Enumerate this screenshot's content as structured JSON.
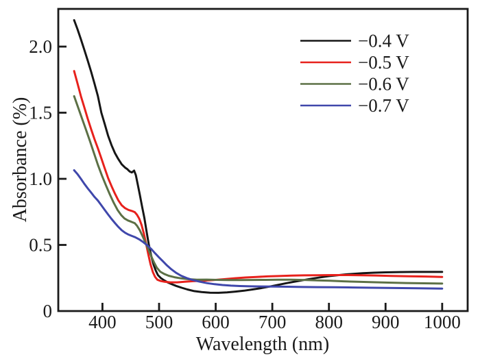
{
  "chart_data": {
    "type": "line",
    "title": "",
    "xlabel": "Wavelength (nm)",
    "ylabel": "Absorbance (%)",
    "xlim": [
      322,
      1045
    ],
    "ylim": [
      0,
      2.285
    ],
    "grid": false,
    "legend_position": "upper right",
    "frame_color": "#1a1a1a",
    "x_ticks": [
      {
        "value": 400,
        "label": "400"
      },
      {
        "value": 500,
        "label": "500"
      },
      {
        "value": 600,
        "label": "600"
      },
      {
        "value": 700,
        "label": "700"
      },
      {
        "value": 800,
        "label": "800"
      },
      {
        "value": 900,
        "label": "900"
      },
      {
        "value": 1000,
        "label": "1000"
      }
    ],
    "y_ticks": [
      {
        "value": 0,
        "label": "0"
      },
      {
        "value": 0.5,
        "label": "0.5"
      },
      {
        "value": 1.0,
        "label": "1.0"
      },
      {
        "value": 1.5,
        "label": "1.5"
      },
      {
        "value": 2.0,
        "label": "2.0"
      }
    ],
    "series": [
      {
        "name": "−0.4 V",
        "color": "#161616",
        "points": [
          [
            350,
            2.2
          ],
          [
            356,
            2.13
          ],
          [
            362,
            2.055
          ],
          [
            368,
            1.975
          ],
          [
            374,
            1.895
          ],
          [
            380,
            1.81
          ],
          [
            386,
            1.72
          ],
          [
            392,
            1.625
          ],
          [
            398,
            1.5
          ],
          [
            404,
            1.415
          ],
          [
            410,
            1.325
          ],
          [
            416,
            1.255
          ],
          [
            422,
            1.195
          ],
          [
            428,
            1.15
          ],
          [
            434,
            1.11
          ],
          [
            440,
            1.085
          ],
          [
            444,
            1.073
          ],
          [
            448,
            1.056
          ],
          [
            452,
            1.048
          ],
          [
            456,
            1.062
          ],
          [
            459,
            1.028
          ],
          [
            462,
            0.965
          ],
          [
            466,
            0.88
          ],
          [
            470,
            0.79
          ],
          [
            474,
            0.705
          ],
          [
            478,
            0.6
          ],
          [
            482,
            0.5
          ],
          [
            486,
            0.42
          ],
          [
            490,
            0.355
          ],
          [
            494,
            0.308
          ],
          [
            498,
            0.272
          ],
          [
            503,
            0.25
          ],
          [
            509,
            0.232
          ],
          [
            515,
            0.217
          ],
          [
            522,
            0.204
          ],
          [
            530,
            0.19
          ],
          [
            540,
            0.176
          ],
          [
            550,
            0.163
          ],
          [
            562,
            0.151
          ],
          [
            575,
            0.144
          ],
          [
            590,
            0.139
          ],
          [
            605,
            0.138
          ],
          [
            620,
            0.141
          ],
          [
            635,
            0.147
          ],
          [
            650,
            0.154
          ],
          [
            665,
            0.163
          ],
          [
            680,
            0.173
          ],
          [
            695,
            0.185
          ],
          [
            710,
            0.198
          ],
          [
            725,
            0.211
          ],
          [
            740,
            0.223
          ],
          [
            755,
            0.234
          ],
          [
            770,
            0.245
          ],
          [
            785,
            0.255
          ],
          [
            800,
            0.264
          ],
          [
            815,
            0.271
          ],
          [
            830,
            0.277
          ],
          [
            845,
            0.282
          ],
          [
            860,
            0.286
          ],
          [
            880,
            0.29
          ],
          [
            900,
            0.293
          ],
          [
            925,
            0.295
          ],
          [
            950,
            0.296
          ],
          [
            975,
            0.296
          ],
          [
            1000,
            0.296
          ]
        ]
      },
      {
        "name": "−0.5 V",
        "color": "#e7211c",
        "points": [
          [
            350,
            1.815
          ],
          [
            356,
            1.72
          ],
          [
            362,
            1.625
          ],
          [
            368,
            1.54
          ],
          [
            374,
            1.455
          ],
          [
            380,
            1.375
          ],
          [
            386,
            1.3
          ],
          [
            392,
            1.23
          ],
          [
            398,
            1.155
          ],
          [
            404,
            1.08
          ],
          [
            410,
            1.005
          ],
          [
            416,
            0.945
          ],
          [
            422,
            0.888
          ],
          [
            428,
            0.838
          ],
          [
            434,
            0.8
          ],
          [
            440,
            0.778
          ],
          [
            446,
            0.765
          ],
          [
            452,
            0.757
          ],
          [
            457,
            0.748
          ],
          [
            461,
            0.728
          ],
          [
            465,
            0.698
          ],
          [
            469,
            0.652
          ],
          [
            473,
            0.588
          ],
          [
            477,
            0.51
          ],
          [
            481,
            0.428
          ],
          [
            485,
            0.352
          ],
          [
            489,
            0.295
          ],
          [
            493,
            0.258
          ],
          [
            497,
            0.237
          ],
          [
            503,
            0.227
          ],
          [
            510,
            0.221
          ],
          [
            520,
            0.217
          ],
          [
            532,
            0.217
          ],
          [
            545,
            0.221
          ],
          [
            560,
            0.226
          ],
          [
            578,
            0.229
          ],
          [
            596,
            0.234
          ],
          [
            615,
            0.241
          ],
          [
            634,
            0.248
          ],
          [
            653,
            0.254
          ],
          [
            672,
            0.258
          ],
          [
            692,
            0.262
          ],
          [
            712,
            0.265
          ],
          [
            734,
            0.268
          ],
          [
            756,
            0.27
          ],
          [
            780,
            0.271
          ],
          [
            805,
            0.272
          ],
          [
            830,
            0.272
          ],
          [
            856,
            0.271
          ],
          [
            882,
            0.269
          ],
          [
            910,
            0.266
          ],
          [
            940,
            0.263
          ],
          [
            970,
            0.261
          ],
          [
            1000,
            0.258
          ]
        ]
      },
      {
        "name": "−0.6 V",
        "color": "#5c7045",
        "points": [
          [
            350,
            1.625
          ],
          [
            357,
            1.54
          ],
          [
            364,
            1.455
          ],
          [
            371,
            1.37
          ],
          [
            378,
            1.285
          ],
          [
            385,
            1.195
          ],
          [
            392,
            1.105
          ],
          [
            399,
            1.025
          ],
          [
            406,
            0.952
          ],
          [
            413,
            0.883
          ],
          [
            420,
            0.818
          ],
          [
            427,
            0.762
          ],
          [
            433,
            0.726
          ],
          [
            439,
            0.7
          ],
          [
            445,
            0.685
          ],
          [
            451,
            0.675
          ],
          [
            457,
            0.664
          ],
          [
            461,
            0.645
          ],
          [
            466,
            0.611
          ],
          [
            471,
            0.566
          ],
          [
            476,
            0.516
          ],
          [
            481,
            0.466
          ],
          [
            486,
            0.416
          ],
          [
            491,
            0.369
          ],
          [
            496,
            0.328
          ],
          [
            502,
            0.298
          ],
          [
            509,
            0.281
          ],
          [
            517,
            0.267
          ],
          [
            527,
            0.256
          ],
          [
            539,
            0.247
          ],
          [
            552,
            0.241
          ],
          [
            567,
            0.237
          ],
          [
            584,
            0.238
          ],
          [
            602,
            0.236
          ],
          [
            622,
            0.234
          ],
          [
            643,
            0.234
          ],
          [
            665,
            0.235
          ],
          [
            688,
            0.236
          ],
          [
            710,
            0.237
          ],
          [
            733,
            0.237
          ],
          [
            756,
            0.235
          ],
          [
            779,
            0.232
          ],
          [
            802,
            0.229
          ],
          [
            826,
            0.225
          ],
          [
            851,
            0.221
          ],
          [
            877,
            0.218
          ],
          [
            905,
            0.215
          ],
          [
            936,
            0.212
          ],
          [
            968,
            0.21
          ],
          [
            1000,
            0.208
          ]
        ]
      },
      {
        "name": "−0.7 V",
        "color": "#3f47ab",
        "points": [
          [
            350,
            1.065
          ],
          [
            356,
            1.035
          ],
          [
            362,
            1.0
          ],
          [
            368,
            0.962
          ],
          [
            374,
            0.928
          ],
          [
            380,
            0.896
          ],
          [
            386,
            0.863
          ],
          [
            392,
            0.835
          ],
          [
            398,
            0.8
          ],
          [
            404,
            0.765
          ],
          [
            410,
            0.73
          ],
          [
            416,
            0.697
          ],
          [
            422,
            0.666
          ],
          [
            428,
            0.637
          ],
          [
            434,
            0.611
          ],
          [
            440,
            0.592
          ],
          [
            446,
            0.578
          ],
          [
            452,
            0.568
          ],
          [
            458,
            0.558
          ],
          [
            465,
            0.542
          ],
          [
            472,
            0.521
          ],
          [
            479,
            0.498
          ],
          [
            486,
            0.47
          ],
          [
            493,
            0.437
          ],
          [
            500,
            0.405
          ],
          [
            507,
            0.375
          ],
          [
            514,
            0.345
          ],
          [
            522,
            0.315
          ],
          [
            530,
            0.289
          ],
          [
            539,
            0.267
          ],
          [
            549,
            0.249
          ],
          [
            560,
            0.234
          ],
          [
            572,
            0.222
          ],
          [
            585,
            0.211
          ],
          [
            598,
            0.203
          ],
          [
            612,
            0.197
          ],
          [
            627,
            0.192
          ],
          [
            643,
            0.189
          ],
          [
            660,
            0.187
          ],
          [
            680,
            0.186
          ],
          [
            702,
            0.185
          ],
          [
            726,
            0.184
          ],
          [
            752,
            0.182
          ],
          [
            780,
            0.181
          ],
          [
            810,
            0.18
          ],
          [
            842,
            0.178
          ],
          [
            876,
            0.176
          ],
          [
            916,
            0.174
          ],
          [
            956,
            0.172
          ],
          [
            1000,
            0.17
          ]
        ]
      }
    ]
  }
}
